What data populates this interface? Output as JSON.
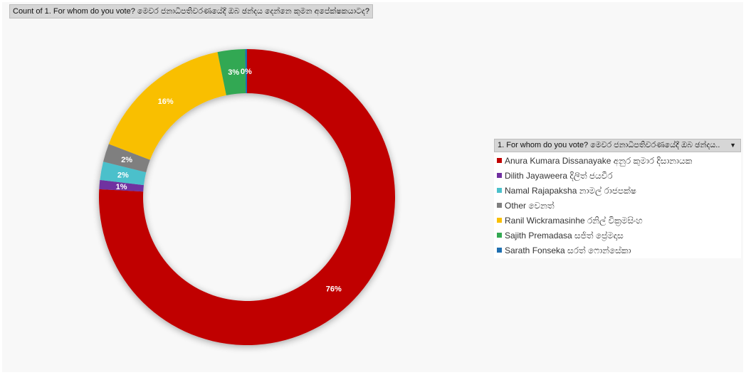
{
  "title": "Count of 1. For whom do you vote? මෙවර ජනාධිපතිවරණයේදී ඔබ ඡන්දය දෙන්නෙ කුමන අපේක්ෂකයාටද?",
  "legend": {
    "header": "1. For whom do you vote? මෙවර ජනාධිපතිවරණයේදී ඔබ ඡන්දය..",
    "dropdown_icon": "dropdown-arrow-icon"
  },
  "chart_data": {
    "type": "pie",
    "subtype": "donut",
    "title": "Count of 1. For whom do you vote? මෙවර ජනාධිපතිවරණයේදී ඔබ ඡන්දය දෙන්නෙ කුමන අපේක්ෂකයාටද?",
    "unit": "%",
    "series": [
      {
        "name": "Anura Kumara Dissanayake අනුර කුමාර දිසානායක",
        "value": 76,
        "label": "76%",
        "color": "#c00000"
      },
      {
        "name": "Dilith Jayaweera දිලිත් ජයවීර",
        "value": 1,
        "label": "1%",
        "color": "#7030a0"
      },
      {
        "name": "Namal Rajapaksha නාමල් රාජපක්ෂ",
        "value": 2,
        "label": "2%",
        "color": "#4bc0cb"
      },
      {
        "name": "Other වෙනත්",
        "value": 2,
        "label": "2%",
        "color": "#7f7f7f"
      },
      {
        "name": "Ranil Wickramasinhe රනිල් වික්‍රමසිංහ",
        "value": 16,
        "label": "16%",
        "color": "#f9bf00"
      },
      {
        "name": "Sajith Premadasa සජිත් ප්‍රේමදාස",
        "value": 3,
        "label": "3%",
        "color": "#33a852"
      },
      {
        "name": "Sarath Fonseka සරත් ෆොන්සේකා",
        "value": 0.2,
        "label": "0%",
        "color": "#1f6fb0"
      }
    ],
    "legend_position": "right"
  }
}
